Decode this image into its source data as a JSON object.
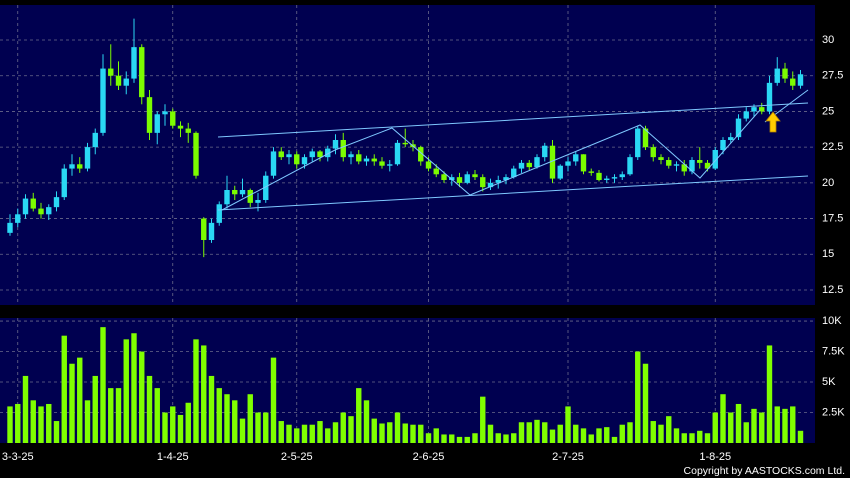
{
  "chart_data": [
    {
      "type": "candlestick",
      "categories": [
        null,
        "3-3-25",
        null,
        null,
        null,
        null,
        null,
        null,
        null,
        null,
        null,
        null,
        null,
        null,
        null,
        null,
        null,
        null,
        null,
        null,
        null,
        "1-4-25",
        null,
        null,
        null,
        null,
        null,
        null,
        null,
        null,
        null,
        null,
        null,
        null,
        null,
        null,
        null,
        "2-5-25",
        null,
        null,
        null,
        null,
        null,
        null,
        null,
        null,
        null,
        null,
        null,
        null,
        null,
        null,
        null,
        null,
        "2-6-25",
        null,
        null,
        null,
        null,
        null,
        null,
        null,
        null,
        null,
        null,
        null,
        null,
        null,
        null,
        null,
        null,
        null,
        "2-7-25",
        null,
        null,
        null,
        null,
        null,
        null,
        null,
        null,
        null,
        null,
        null,
        null,
        null,
        null,
        null,
        null,
        null,
        null,
        "1-8-25",
        null,
        null,
        null,
        null,
        null,
        null,
        null,
        null,
        null,
        null,
        null
      ],
      "open": [
        16.5,
        17.2,
        17.8,
        18.9,
        18.2,
        17.8,
        18.3,
        19.0,
        21.0,
        21.3,
        21.0,
        22.5,
        23.5,
        28.0,
        27.5,
        26.8,
        27.3,
        29.5,
        26.0,
        23.5,
        24.8,
        25.0,
        24.0,
        23.8,
        23.5,
        17.5,
        16.0,
        17.2,
        18.5,
        19.5,
        19.2,
        19.5,
        18.6,
        18.8,
        20.5,
        22.2,
        21.8,
        22.0,
        21.3,
        21.8,
        22.2,
        21.8,
        22.4,
        23.0,
        21.8,
        22.0,
        21.5,
        21.7,
        21.5,
        21.2,
        21.3,
        22.8,
        22.7,
        22.5,
        21.5,
        21.0,
        20.6,
        20.2,
        20.4,
        20.0,
        20.6,
        20.4,
        19.7,
        20.0,
        20.2,
        20.4,
        21.0,
        21.4,
        21.1,
        21.8,
        22.6,
        20.3,
        21.2,
        21.5,
        22.0,
        20.8,
        20.7,
        20.2,
        20.3,
        20.4,
        20.6,
        21.8,
        23.8,
        22.5,
        21.8,
        21.6,
        21.2,
        21.3,
        20.8,
        21.6,
        21.4,
        21.0,
        22.3,
        23.0,
        23.2,
        24.5,
        25.0,
        25.3,
        25.0,
        27.0,
        28.0,
        27.3,
        26.8
      ],
      "high": [
        17.8,
        18.2,
        19.2,
        19.3,
        18.6,
        18.5,
        19.4,
        21.3,
        22.0,
        21.8,
        22.8,
        23.8,
        29.0,
        29.7,
        28.5,
        27.8,
        31.5,
        29.7,
        26.5,
        25.0,
        25.5,
        25.2,
        24.3,
        24.2,
        23.6,
        17.6,
        17.5,
        18.7,
        20.5,
        19.8,
        20.3,
        19.6,
        19.3,
        20.8,
        22.5,
        22.5,
        22.3,
        22.2,
        22.0,
        22.4,
        22.3,
        22.6,
        23.4,
        23.5,
        22.2,
        22.3,
        21.9,
        22.0,
        21.8,
        21.6,
        23.0,
        23.8,
        23.0,
        22.6,
        21.8,
        21.3,
        20.8,
        20.6,
        20.7,
        20.8,
        20.9,
        20.6,
        20.3,
        20.5,
        20.6,
        21.2,
        21.6,
        21.6,
        22.0,
        22.8,
        23.0,
        21.3,
        21.8,
        22.2,
        22.0,
        21.0,
        20.9,
        20.5,
        20.6,
        20.8,
        22.0,
        24.0,
        24.0,
        22.7,
        22.0,
        21.8,
        21.5,
        21.6,
        21.8,
        22.5,
        21.6,
        22.5,
        23.2,
        23.5,
        24.8,
        25.3,
        25.5,
        25.6,
        27.5,
        28.8,
        28.4,
        27.8,
        27.9
      ],
      "low": [
        16.3,
        16.9,
        17.5,
        18.0,
        17.5,
        17.4,
        18.0,
        18.8,
        20.5,
        20.7,
        20.8,
        22.0,
        23.3,
        26.8,
        26.5,
        26.2,
        27.0,
        25.5,
        23.0,
        22.7,
        24.0,
        23.8,
        23.2,
        22.8,
        20.3,
        14.8,
        15.8,
        17.0,
        18.2,
        18.8,
        19.0,
        18.3,
        18.0,
        18.6,
        20.3,
        21.6,
        21.3,
        21.0,
        21.0,
        21.5,
        21.5,
        21.5,
        22.0,
        21.5,
        21.3,
        21.3,
        21.2,
        21.2,
        21.0,
        20.8,
        21.2,
        22.5,
        22.2,
        21.2,
        20.8,
        20.4,
        20.0,
        19.8,
        19.7,
        19.9,
        20.2,
        19.4,
        19.5,
        19.6,
        19.9,
        20.3,
        20.7,
        20.9,
        21.0,
        21.5,
        20.0,
        20.2,
        20.8,
        21.2,
        20.6,
        20.5,
        20.1,
        20.0,
        20.0,
        20.2,
        20.5,
        21.6,
        22.3,
        21.5,
        21.3,
        21.0,
        20.8,
        20.5,
        20.6,
        21.0,
        20.8,
        20.9,
        22.0,
        22.8,
        23.0,
        24.3,
        24.6,
        24.8,
        24.8,
        26.8,
        27.0,
        26.5,
        26.6
      ],
      "close": [
        17.2,
        17.8,
        18.9,
        18.2,
        17.8,
        18.3,
        19.0,
        21.0,
        21.3,
        21.0,
        22.5,
        23.5,
        28.0,
        27.5,
        26.8,
        27.3,
        29.5,
        26.0,
        23.5,
        24.8,
        25.0,
        24.0,
        23.8,
        23.5,
        20.5,
        16.0,
        17.2,
        18.5,
        19.5,
        19.2,
        19.5,
        18.6,
        18.8,
        20.5,
        22.2,
        21.8,
        22.0,
        21.3,
        21.8,
        22.2,
        21.8,
        22.4,
        23.0,
        21.8,
        22.0,
        21.5,
        21.7,
        21.5,
        21.2,
        21.3,
        22.8,
        22.7,
        22.5,
        21.5,
        21.0,
        20.6,
        20.2,
        20.4,
        20.0,
        20.6,
        20.4,
        19.7,
        20.0,
        20.2,
        20.4,
        21.0,
        21.4,
        21.1,
        21.8,
        22.6,
        20.3,
        21.2,
        21.5,
        22.0,
        20.8,
        20.7,
        20.2,
        20.3,
        20.4,
        20.6,
        21.8,
        23.8,
        22.5,
        21.8,
        21.6,
        21.2,
        21.3,
        20.8,
        21.6,
        21.4,
        21.0,
        22.3,
        23.0,
        23.2,
        24.5,
        25.0,
        25.3,
        25.0,
        27.0,
        28.0,
        27.3,
        26.8,
        27.6
      ],
      "up_color": "#2ad8f4",
      "down_color": "#7cfc00",
      "ylim": [
        11.45,
        32.45
      ],
      "yticks": [
        12.5,
        15,
        17.5,
        20,
        22.5,
        25,
        27.5,
        30
      ],
      "grid": true
    },
    {
      "type": "bar",
      "values": [
        3000,
        3200,
        5500,
        3500,
        3000,
        3200,
        1800,
        8800,
        6500,
        7000,
        3500,
        5500,
        9500,
        4500,
        4500,
        8500,
        9000,
        7500,
        5500,
        4500,
        2500,
        3000,
        2300,
        3300,
        8500,
        8000,
        5500,
        4500,
        4000,
        3500,
        2000,
        4000,
        2500,
        2500,
        7000,
        1800,
        1500,
        1200,
        1500,
        1500,
        1800,
        1200,
        1700,
        2500,
        2200,
        4500,
        3500,
        2000,
        1600,
        1700,
        2500,
        1600,
        1500,
        1500,
        800,
        1200,
        700,
        700,
        500,
        500,
        800,
        3800,
        1500,
        800,
        700,
        800,
        1700,
        1700,
        1900,
        1700,
        1100,
        1500,
        3000,
        1500,
        1200,
        700,
        1200,
        1300,
        500,
        1500,
        1700,
        7500,
        6500,
        1800,
        1500,
        2200,
        1200,
        800,
        800,
        1000,
        800,
        2500,
        4000,
        2500,
        3200,
        1700,
        2800,
        2500,
        8000,
        3000,
        2800,
        3000,
        1000
      ],
      "color": "#80ff00",
      "ylim": [
        0,
        10250
      ],
      "yticks": [
        {
          "value": 2500,
          "label": "2.5K"
        },
        {
          "value": 5000,
          "label": "5K"
        },
        {
          "value": 7500,
          "label": "7.5K"
        },
        {
          "value": 10000,
          "label": "10K"
        }
      ],
      "grid": true
    }
  ],
  "copyright": "Copyright by AASTOCKS.com Ltd."
}
